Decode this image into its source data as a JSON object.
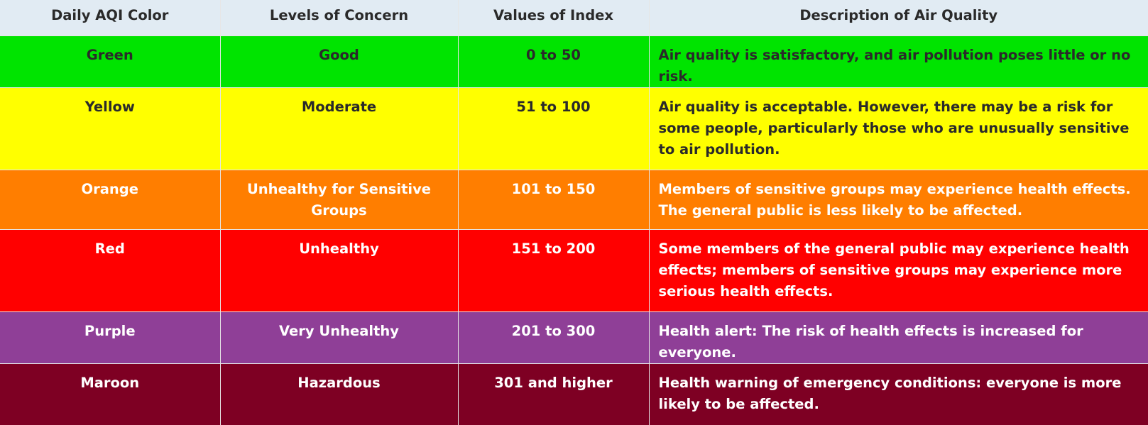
{
  "headers": [
    "Daily AQI Color",
    "Levels of Concern",
    "Values of Index",
    "Description of Air Quality"
  ],
  "rows": [
    {
      "color_name": "Green",
      "level": "Good",
      "range": "0 to 50",
      "description": "Air quality is satisfactory, and air pollution poses little or no risk.",
      "bg": "#00e400",
      "fg": "#2a2a2a"
    },
    {
      "color_name": "Yellow",
      "level": "Moderate",
      "range": "51 to 100",
      "description": "Air quality is acceptable. However, there may be a risk for some people, particularly those who are unusually sensitive to air pollution.",
      "bg": "#ffff00",
      "fg": "#2a2a2a"
    },
    {
      "color_name": "Orange",
      "level": "Unhealthy for Sensitive Groups",
      "range": "101 to 150",
      "description": "Members of sensitive groups may experience health effects. The general public is less likely to be affected.",
      "bg": "#ff7e00",
      "fg": "#ffffff"
    },
    {
      "color_name": "Red",
      "level": "Unhealthy",
      "range": "151 to 200",
      "description": "Some members of the general public may experience health effects; members of sensitive groups may experience more serious health effects.",
      "bg": "#ff0000",
      "fg": "#ffffff"
    },
    {
      "color_name": "Purple",
      "level": "Very Unhealthy",
      "range": "201 to 300",
      "description": "Health alert: The risk of health effects is increased for everyone.",
      "bg": "#8f3f97",
      "fg": "#ffffff"
    },
    {
      "color_name": "Maroon",
      "level": "Hazardous",
      "range": "301 and higher",
      "description": "Health warning of emergency conditions: everyone is more likely to be affected.",
      "bg": "#7e0023",
      "fg": "#ffffff"
    }
  ]
}
